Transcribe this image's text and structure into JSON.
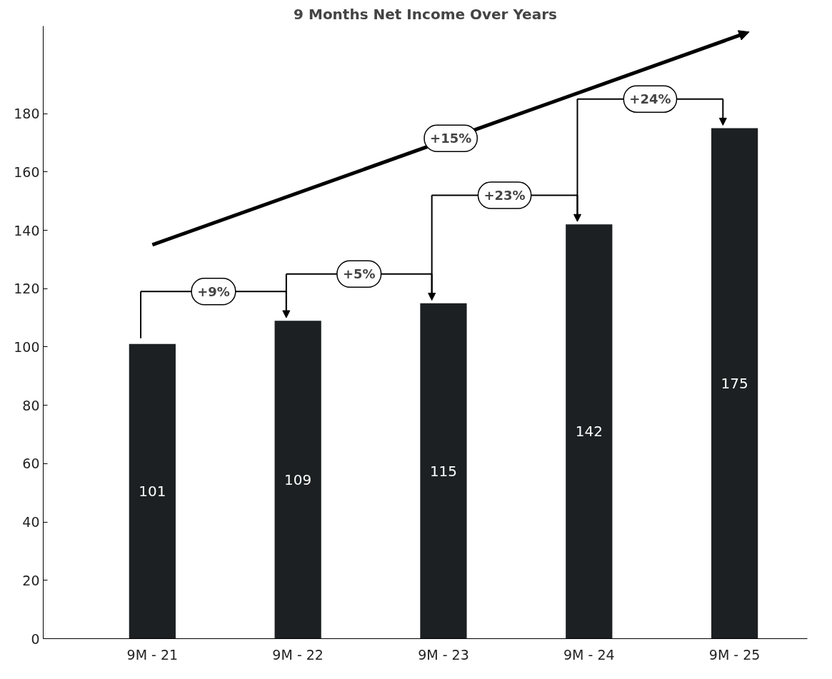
{
  "chart_data": {
    "type": "bar",
    "title": "9 Months Net Income Over Years",
    "categories": [
      "9M - 21",
      "9M - 22",
      "9M - 23",
      "9M - 24",
      "9M - 25"
    ],
    "values": [
      101,
      109,
      115,
      142,
      175
    ],
    "color": "#1c2022",
    "data_labels": true,
    "ylim": [
      0,
      210
    ],
    "yticks": [
      0,
      20,
      40,
      60,
      80,
      100,
      120,
      140,
      160,
      180
    ],
    "grid": false,
    "annotations": [
      "+9%",
      "+5%",
      "+23%",
      "+24%",
      "+15%"
    ]
  }
}
